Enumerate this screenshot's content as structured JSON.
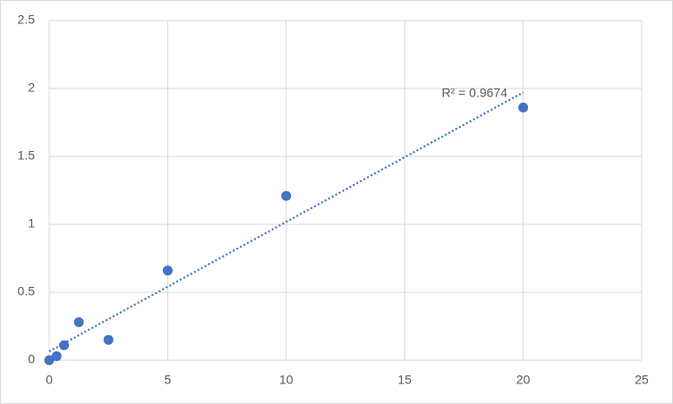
{
  "chart_data": {
    "type": "scatter",
    "x": [
      0,
      0.3125,
      0.625,
      1.25,
      2.5,
      5,
      10,
      20
    ],
    "series": [
      {
        "color": "#4472c4",
        "values": [
          0,
          0.03,
          0.11,
          0.28,
          0.15,
          0.66,
          1.21,
          1.86
        ]
      }
    ],
    "xlim": [
      0,
      25
    ],
    "xticks": [
      0,
      5,
      10,
      15,
      20,
      25
    ],
    "ylim": [
      0,
      2.5
    ],
    "yticks": [
      0,
      0.5,
      1,
      1.5,
      2,
      2.5
    ],
    "grid": true,
    "trendline": {
      "type": "linear",
      "color": "#4472c4"
    },
    "annotations": [
      "R² = 0.9674"
    ]
  }
}
